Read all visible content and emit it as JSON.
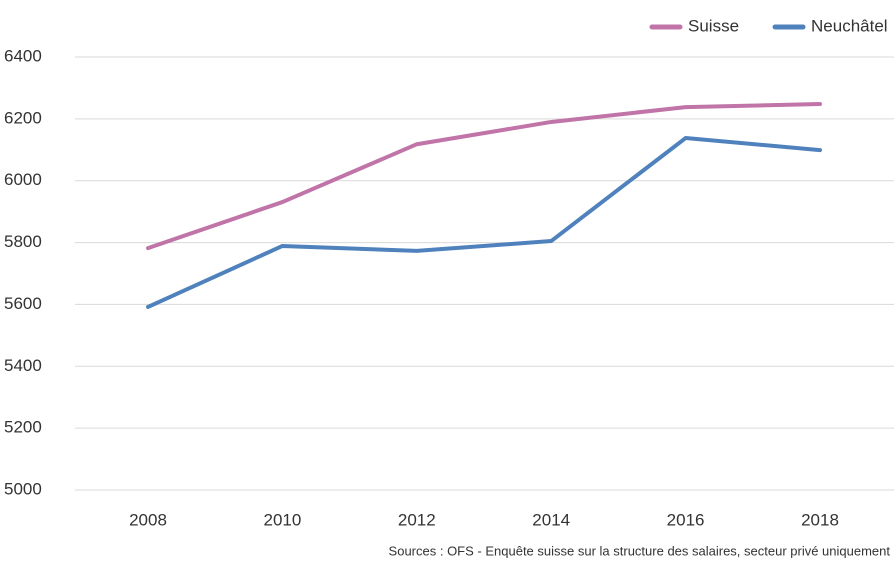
{
  "chart_data": {
    "type": "line",
    "categories": [
      "2008",
      "2010",
      "2012",
      "2014",
      "2016",
      "2018"
    ],
    "series": [
      {
        "name": "Suisse",
        "color": "#c074a8",
        "values": [
          5782,
          5931,
          6118,
          6190,
          6238,
          6248
        ]
      },
      {
        "name": "Neuchâtel",
        "color": "#4f81bd",
        "values": [
          5592,
          5789,
          5773,
          5805,
          6138,
          6099
        ]
      }
    ],
    "ylim": [
      5000,
      6400
    ],
    "yticks": [
      5000,
      5200,
      5400,
      5600,
      5800,
      6000,
      6200,
      6400
    ],
    "grid": true,
    "legend": "top-right",
    "annotation": "Sources : OFS - Enquête suisse sur la structure des salaires, secteur privé uniquement"
  }
}
